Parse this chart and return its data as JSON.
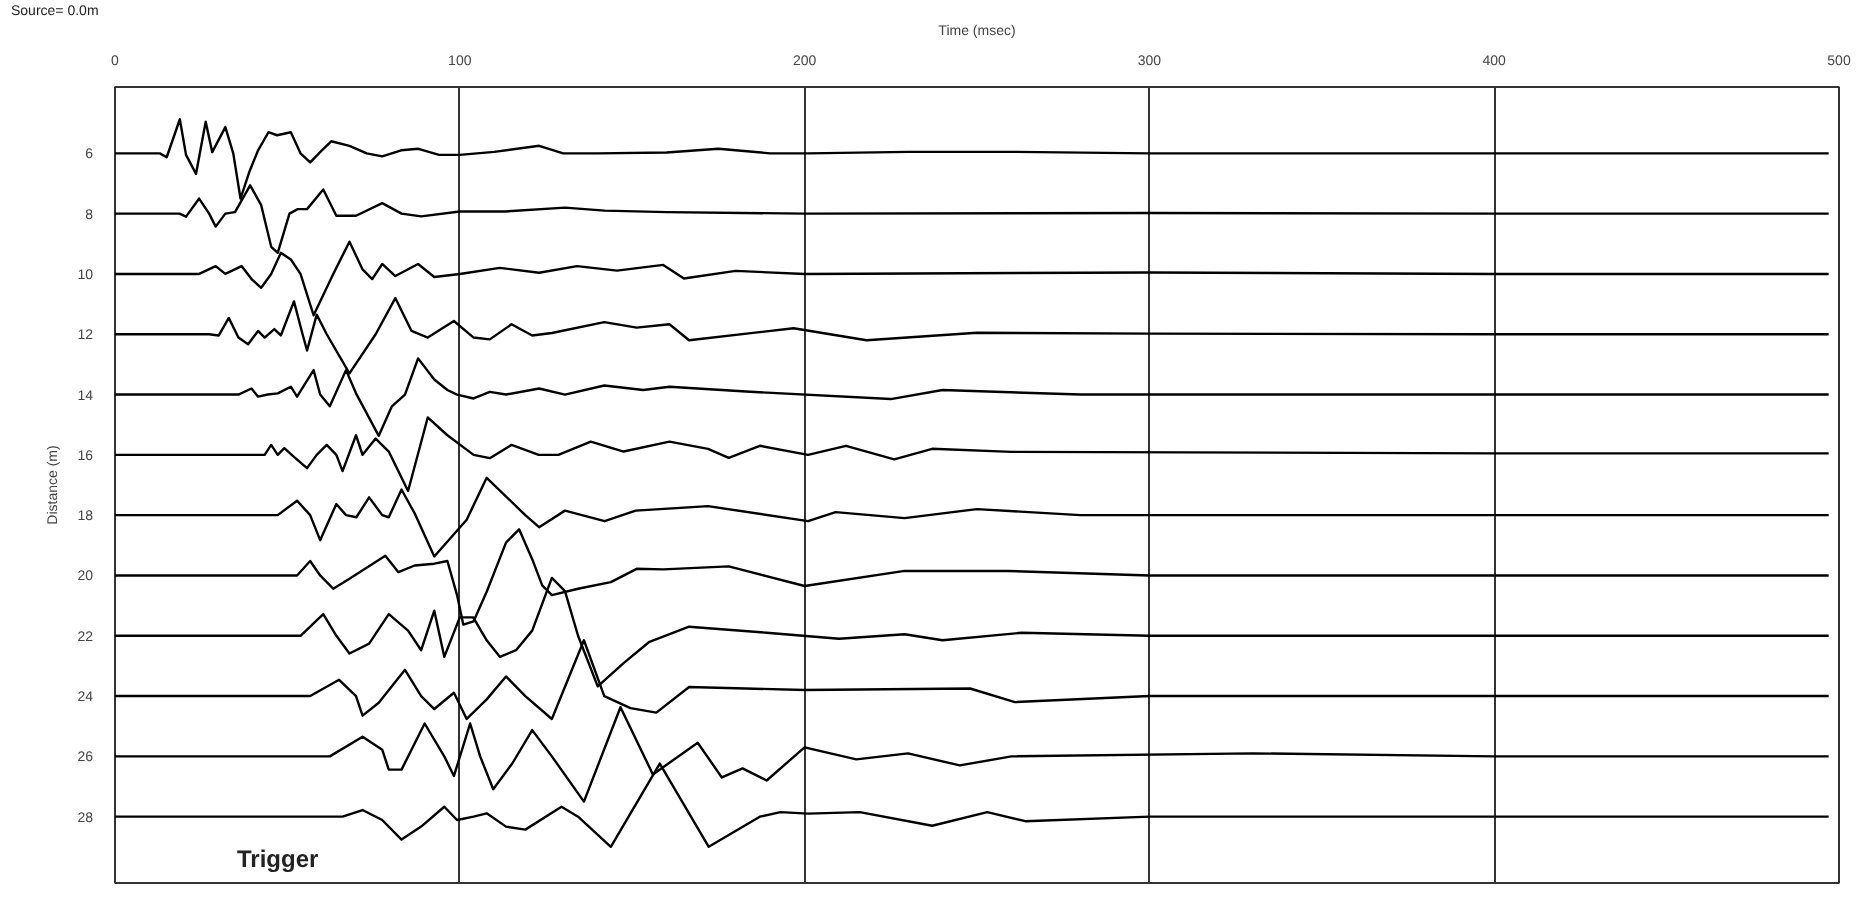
{
  "chart_data": {
    "type": "line",
    "xlabel": "Time (msec)",
    "ylabel": "Distance (m)",
    "annotations": [
      "Source= 0.0m",
      "Trigger"
    ],
    "xlim": [
      0,
      500
    ],
    "xticks": [
      0,
      100,
      200,
      300,
      400,
      500
    ],
    "ylim": [
      30.2,
      3.8
    ],
    "yticks": [
      6,
      8,
      10,
      12,
      14,
      16,
      18,
      20,
      22,
      24,
      26,
      28
    ],
    "grid": "x",
    "marker": "none",
    "line_style": "solid",
    "series": [
      {
        "color": "#000000",
        "x": [
          0,
          13,
          15,
          18.8,
          20.6,
          23.5,
          26.3,
          28.2,
          32,
          34.3,
          36.4,
          39,
          41.5,
          44.5,
          47,
          51,
          53.8,
          56.6,
          60,
          62.7,
          68,
          73,
          77.5,
          83,
          88,
          94,
          100,
          110,
          123,
          130,
          140,
          160,
          175,
          190,
          201,
          230,
          260,
          300,
          400,
          497
        ],
        "values": [
          6,
          6,
          6.13,
          4.87,
          6.05,
          6.68,
          4.95,
          5.96,
          5.13,
          6.0,
          7.5,
          6.6,
          5.9,
          5.3,
          5.4,
          5.3,
          6.0,
          6.3,
          5.9,
          5.6,
          5.75,
          6.0,
          6.1,
          5.9,
          5.85,
          6.05,
          6.05,
          5.95,
          5.75,
          6.0,
          6.0,
          5.97,
          5.85,
          6.0,
          6.0,
          5.95,
          5.95,
          6.0,
          6.0,
          6.0
        ]
      },
      {
        "color": "#000000",
        "x": [
          0,
          18.7,
          20.6,
          24.4,
          27.3,
          29.2,
          32,
          34.8,
          39.2,
          42.4,
          45.3,
          47.2,
          50.6,
          53,
          55.7,
          60.4,
          64.2,
          69.9,
          77.5,
          83.1,
          88.8,
          100,
          113,
          130.5,
          142,
          160,
          200,
          300,
          400,
          497
        ],
        "values": [
          8,
          8,
          8.1,
          7.5,
          8.0,
          8.43,
          8.0,
          7.95,
          7.06,
          7.72,
          9.1,
          9.3,
          8.0,
          7.85,
          7.85,
          7.2,
          8.07,
          8.07,
          7.65,
          8.0,
          8.09,
          7.93,
          7.93,
          7.8,
          7.9,
          7.95,
          8.0,
          7.98,
          8.0,
          8.0
        ]
      },
      {
        "color": "#000000",
        "x": [
          0,
          24.4,
          29.2,
          32,
          36.7,
          39.6,
          42.4,
          45.3,
          48.1,
          51,
          53.8,
          57.6,
          63.3,
          68,
          71.8,
          74.6,
          77.5,
          81.3,
          87.9,
          92.6,
          100,
          111.6,
          123,
          134,
          145.6,
          159,
          165,
          180,
          200,
          300,
          400,
          497
        ],
        "values": [
          10,
          10,
          9.74,
          10,
          9.74,
          10.17,
          10.46,
          10,
          9.3,
          9.52,
          10,
          11.37,
          10,
          8.93,
          9.85,
          10.17,
          9.67,
          10.07,
          9.67,
          10.1,
          10,
          9.8,
          9.96,
          9.74,
          9.89,
          9.7,
          10.15,
          9.9,
          10.0,
          9.95,
          10.0,
          10.0
        ]
      },
      {
        "color": "#000000",
        "x": [
          0,
          27.3,
          30.1,
          33,
          35.8,
          38.6,
          41.5,
          43.4,
          46.2,
          48.1,
          51.9,
          54.4,
          55.7,
          58.5,
          61.4,
          68,
          75.6,
          81.3,
          86,
          90.7,
          98.3,
          104,
          108.7,
          115,
          121,
          126.7,
          141.9,
          151.3,
          160.8,
          166.5,
          196.8,
          218,
          250,
          300,
          400,
          497
        ],
        "values": [
          12,
          12,
          12.04,
          11.46,
          12.11,
          12.33,
          11.89,
          12.11,
          11.83,
          12.04,
          10.91,
          12,
          12.54,
          11.35,
          12,
          13.3,
          12,
          10.8,
          11.89,
          12.11,
          11.56,
          12.11,
          12.17,
          11.67,
          12.04,
          11.96,
          11.6,
          11.78,
          11.67,
          12.2,
          11.8,
          12.2,
          11.95,
          11.98,
          12.0,
          12.0
        ]
      },
      {
        "color": "#000000",
        "x": [
          0,
          35.8,
          39.6,
          41.5,
          44.3,
          47.2,
          51,
          52.8,
          57.6,
          59.5,
          62.3,
          67,
          69.9,
          76.5,
          80.3,
          84.1,
          87.9,
          92.6,
          96.4,
          99.2,
          104,
          108.7,
          113.4,
          123,
          130.5,
          141.9,
          153.2,
          160.8,
          183,
          225,
          240,
          280,
          400,
          497
        ],
        "values": [
          14,
          14,
          13.8,
          14.07,
          14,
          13.96,
          13.74,
          14.07,
          13.19,
          14,
          14.39,
          13.19,
          13.96,
          15.37,
          14.39,
          14,
          12.8,
          13.5,
          13.85,
          14,
          14.13,
          13.91,
          14,
          13.8,
          14,
          13.7,
          13.85,
          13.74,
          13.9,
          14.15,
          13.85,
          14.0,
          14.0,
          14.0
        ]
      },
      {
        "color": "#000000",
        "x": [
          0,
          43.4,
          45.3,
          47.2,
          49.1,
          51.9,
          55.7,
          58.5,
          61.4,
          64.2,
          66,
          69.9,
          71.8,
          75.6,
          79.4,
          85,
          90.7,
          96.4,
          104,
          108.7,
          115,
          122.9,
          128.6,
          138,
          147.5,
          160.8,
          172,
          178,
          187,
          201,
          212,
          226,
          237,
          260,
          400,
          497
        ],
        "values": [
          16,
          16,
          15.67,
          16,
          15.78,
          16.07,
          16.44,
          16,
          15.67,
          16,
          16.54,
          15.35,
          16,
          15.46,
          15.89,
          17.2,
          14.76,
          15.35,
          16,
          16.11,
          15.67,
          16,
          16,
          15.56,
          15.89,
          15.56,
          15.8,
          16.1,
          15.7,
          16.0,
          15.7,
          16.15,
          15.8,
          15.9,
          15.95,
          15.95
        ]
      },
      {
        "color": "#000000",
        "x": [
          0,
          47.2,
          52.8,
          56.6,
          59.5,
          64.2,
          67,
          70,
          73.7,
          77.5,
          79.4,
          83.1,
          87,
          92.6,
          102,
          107.8,
          119,
          123,
          130.5,
          142,
          151,
          172,
          201,
          209,
          229,
          250,
          280,
          400,
          497
        ],
        "values": [
          18,
          18,
          17.52,
          18,
          18.83,
          17.63,
          18,
          18.07,
          17.41,
          18,
          18.07,
          17.15,
          17.96,
          19.37,
          18.15,
          16.76,
          18.0,
          18.4,
          17.85,
          18.2,
          17.85,
          17.7,
          18.2,
          17.9,
          18.1,
          17.8,
          18.0,
          18.0,
          18.0
        ]
      },
      {
        "color": "#000000",
        "x": [
          0,
          52.8,
          56.6,
          59.5,
          63.3,
          68,
          78.4,
          82.2,
          86.9,
          92.6,
          96.4,
          99.2,
          101,
          104,
          107.8,
          113.4,
          117.2,
          121,
          123.9,
          126.7,
          134.3,
          143.8,
          151.3,
          159,
          178,
          200,
          229,
          259,
          300,
          400,
          497
        ],
        "values": [
          20,
          20,
          19.52,
          20,
          20.44,
          20.11,
          19.35,
          19.89,
          19.67,
          19.61,
          19.52,
          20.65,
          21.63,
          21.52,
          20.54,
          18.91,
          18.47,
          19.46,
          20.33,
          20.65,
          20.44,
          20.22,
          19.78,
          19.8,
          19.7,
          20.35,
          19.85,
          19.85,
          20.0,
          20.0,
          20.0
        ]
      },
      {
        "color": "#000000",
        "x": [
          0,
          53.8,
          60.4,
          64.2,
          68,
          73.7,
          79.4,
          85,
          88.8,
          92.6,
          95.5,
          100,
          103.9,
          107.8,
          111.6,
          116.3,
          121,
          126.7,
          130.5,
          134.3,
          140,
          147.5,
          155,
          166.5,
          189,
          210,
          229,
          240,
          263,
          300,
          400,
          497
        ],
        "values": [
          22,
          22,
          21.28,
          22,
          22.59,
          22.26,
          21.28,
          21.83,
          22.48,
          21.17,
          22.7,
          21.39,
          21.39,
          22.15,
          22.7,
          22.48,
          21.83,
          20.08,
          20.52,
          22,
          23.68,
          22.91,
          22.2,
          21.7,
          21.9,
          22.1,
          21.95,
          22.15,
          21.9,
          22.0,
          22.0,
          22.0
        ]
      },
      {
        "color": "#000000",
        "x": [
          0,
          56.6,
          65,
          69.9,
          71.8,
          76.5,
          84.1,
          88.8,
          92.6,
          98.3,
          102,
          107.8,
          113.4,
          119,
          126.7,
          136,
          141.9,
          149.5,
          157,
          166.5,
          200,
          248,
          261,
          300,
          400,
          497
        ],
        "values": [
          24,
          24,
          23.46,
          24,
          24.65,
          24.22,
          23.13,
          24,
          24.43,
          23.89,
          24.76,
          24.11,
          23.35,
          24,
          24.76,
          22.15,
          24,
          24.4,
          24.55,
          23.7,
          23.8,
          23.75,
          24.2,
          24.0,
          24.0,
          24.0
        ]
      },
      {
        "color": "#000000",
        "x": [
          0,
          62.3,
          71.8,
          77.5,
          79.4,
          83.1,
          89.8,
          95.5,
          98.3,
          103,
          105.9,
          109.7,
          115.3,
          121,
          126.7,
          136,
          146.6,
          156,
          169,
          176,
          182,
          189,
          200,
          215,
          230,
          245,
          260,
          330,
          400,
          497
        ],
        "values": [
          26,
          26,
          25.35,
          25.78,
          26.44,
          26.44,
          24.91,
          26,
          26.65,
          24.91,
          26,
          27.09,
          26.22,
          25.13,
          26,
          27.5,
          24.37,
          26.6,
          25.55,
          26.7,
          26.4,
          26.8,
          25.7,
          26.1,
          25.9,
          26.3,
          26.0,
          25.9,
          26.0,
          26.0
        ]
      },
      {
        "color": "#000000",
        "x": [
          0,
          66,
          71.8,
          77.5,
          83.1,
          88.8,
          95.5,
          99.2,
          104,
          107.8,
          113.4,
          119,
          129.5,
          134.3,
          143.8,
          158,
          172.2,
          187,
          193,
          201,
          216,
          237,
          253,
          264,
          300,
          400,
          497
        ],
        "values": [
          28,
          28,
          27.78,
          28.11,
          28.76,
          28.33,
          27.67,
          28.11,
          28,
          27.89,
          28.33,
          28.43,
          27.67,
          28,
          29.0,
          26.24,
          29.0,
          28.0,
          27.85,
          27.9,
          27.85,
          28.3,
          27.85,
          28.15,
          28.0,
          28.0,
          28.0
        ]
      }
    ]
  }
}
